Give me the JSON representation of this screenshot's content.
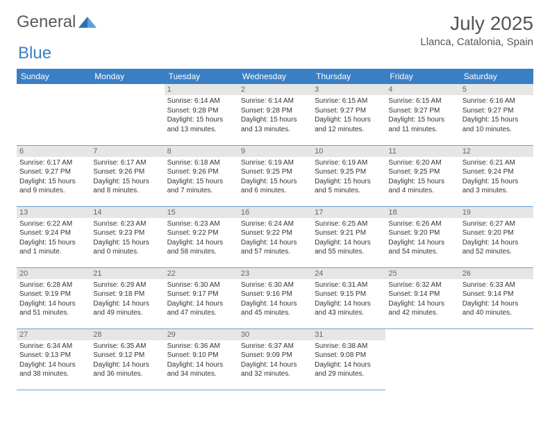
{
  "brand": {
    "text1": "General",
    "text2": "Blue"
  },
  "header": {
    "title": "July 2025",
    "location": "Llanca, Catalonia, Spain"
  },
  "colors": {
    "header_bg": "#3a7fc4",
    "header_fg": "#ffffff",
    "daynum_bg": "#e6e6e6",
    "daynum_fg": "#666666",
    "border": "#6a9fd0",
    "text": "#333333",
    "brand_gray": "#5a5a5a",
    "brand_blue": "#3a7fc4"
  },
  "weekdays": [
    "Sunday",
    "Monday",
    "Tuesday",
    "Wednesday",
    "Thursday",
    "Friday",
    "Saturday"
  ],
  "weeks": [
    [
      null,
      null,
      {
        "num": "1",
        "sunrise": "6:14 AM",
        "sunset": "9:28 PM",
        "daylight": "15 hours and 13 minutes."
      },
      {
        "num": "2",
        "sunrise": "6:14 AM",
        "sunset": "9:28 PM",
        "daylight": "15 hours and 13 minutes."
      },
      {
        "num": "3",
        "sunrise": "6:15 AM",
        "sunset": "9:27 PM",
        "daylight": "15 hours and 12 minutes."
      },
      {
        "num": "4",
        "sunrise": "6:15 AM",
        "sunset": "9:27 PM",
        "daylight": "15 hours and 11 minutes."
      },
      {
        "num": "5",
        "sunrise": "6:16 AM",
        "sunset": "9:27 PM",
        "daylight": "15 hours and 10 minutes."
      }
    ],
    [
      {
        "num": "6",
        "sunrise": "6:17 AM",
        "sunset": "9:27 PM",
        "daylight": "15 hours and 9 minutes."
      },
      {
        "num": "7",
        "sunrise": "6:17 AM",
        "sunset": "9:26 PM",
        "daylight": "15 hours and 8 minutes."
      },
      {
        "num": "8",
        "sunrise": "6:18 AM",
        "sunset": "9:26 PM",
        "daylight": "15 hours and 7 minutes."
      },
      {
        "num": "9",
        "sunrise": "6:19 AM",
        "sunset": "9:25 PM",
        "daylight": "15 hours and 6 minutes."
      },
      {
        "num": "10",
        "sunrise": "6:19 AM",
        "sunset": "9:25 PM",
        "daylight": "15 hours and 5 minutes."
      },
      {
        "num": "11",
        "sunrise": "6:20 AM",
        "sunset": "9:25 PM",
        "daylight": "15 hours and 4 minutes."
      },
      {
        "num": "12",
        "sunrise": "6:21 AM",
        "sunset": "9:24 PM",
        "daylight": "15 hours and 3 minutes."
      }
    ],
    [
      {
        "num": "13",
        "sunrise": "6:22 AM",
        "sunset": "9:24 PM",
        "daylight": "15 hours and 1 minute."
      },
      {
        "num": "14",
        "sunrise": "6:23 AM",
        "sunset": "9:23 PM",
        "daylight": "15 hours and 0 minutes."
      },
      {
        "num": "15",
        "sunrise": "6:23 AM",
        "sunset": "9:22 PM",
        "daylight": "14 hours and 58 minutes."
      },
      {
        "num": "16",
        "sunrise": "6:24 AM",
        "sunset": "9:22 PM",
        "daylight": "14 hours and 57 minutes."
      },
      {
        "num": "17",
        "sunrise": "6:25 AM",
        "sunset": "9:21 PM",
        "daylight": "14 hours and 55 minutes."
      },
      {
        "num": "18",
        "sunrise": "6:26 AM",
        "sunset": "9:20 PM",
        "daylight": "14 hours and 54 minutes."
      },
      {
        "num": "19",
        "sunrise": "6:27 AM",
        "sunset": "9:20 PM",
        "daylight": "14 hours and 52 minutes."
      }
    ],
    [
      {
        "num": "20",
        "sunrise": "6:28 AM",
        "sunset": "9:19 PM",
        "daylight": "14 hours and 51 minutes."
      },
      {
        "num": "21",
        "sunrise": "6:29 AM",
        "sunset": "9:18 PM",
        "daylight": "14 hours and 49 minutes."
      },
      {
        "num": "22",
        "sunrise": "6:30 AM",
        "sunset": "9:17 PM",
        "daylight": "14 hours and 47 minutes."
      },
      {
        "num": "23",
        "sunrise": "6:30 AM",
        "sunset": "9:16 PM",
        "daylight": "14 hours and 45 minutes."
      },
      {
        "num": "24",
        "sunrise": "6:31 AM",
        "sunset": "9:15 PM",
        "daylight": "14 hours and 43 minutes."
      },
      {
        "num": "25",
        "sunrise": "6:32 AM",
        "sunset": "9:14 PM",
        "daylight": "14 hours and 42 minutes."
      },
      {
        "num": "26",
        "sunrise": "6:33 AM",
        "sunset": "9:14 PM",
        "daylight": "14 hours and 40 minutes."
      }
    ],
    [
      {
        "num": "27",
        "sunrise": "6:34 AM",
        "sunset": "9:13 PM",
        "daylight": "14 hours and 38 minutes."
      },
      {
        "num": "28",
        "sunrise": "6:35 AM",
        "sunset": "9:12 PM",
        "daylight": "14 hours and 36 minutes."
      },
      {
        "num": "29",
        "sunrise": "6:36 AM",
        "sunset": "9:10 PM",
        "daylight": "14 hours and 34 minutes."
      },
      {
        "num": "30",
        "sunrise": "6:37 AM",
        "sunset": "9:09 PM",
        "daylight": "14 hours and 32 minutes."
      },
      {
        "num": "31",
        "sunrise": "6:38 AM",
        "sunset": "9:08 PM",
        "daylight": "14 hours and 29 minutes."
      },
      null,
      null
    ]
  ],
  "labels": {
    "sunrise": "Sunrise:",
    "sunset": "Sunset:",
    "daylight": "Daylight:"
  }
}
